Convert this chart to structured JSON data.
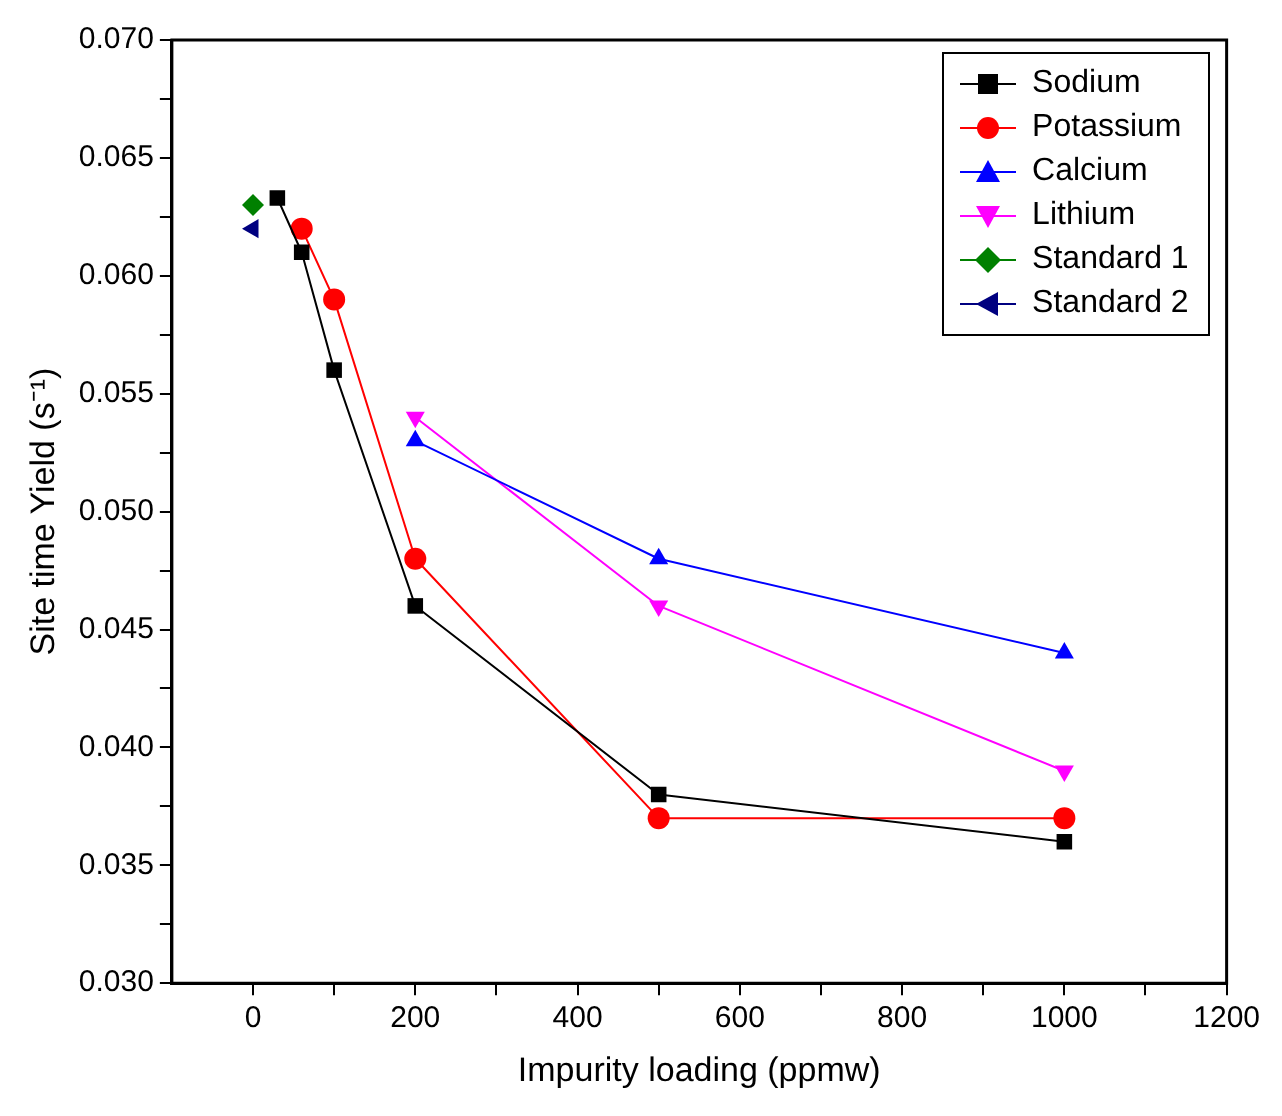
{
  "chart_data": {
    "type": "line",
    "xlabel": "Impurity loading (ppmw)",
    "ylabel": "Site time Yield (s⁻¹)",
    "xlim": [
      -100,
      1200
    ],
    "xticks": [
      0,
      {
        "value": 100,
        "label": null
      },
      200,
      {
        "value": 300,
        "label": null
      },
      400,
      {
        "value": 500,
        "label": null
      },
      600,
      {
        "value": 700,
        "label": null
      },
      800,
      {
        "value": 900,
        "label": null
      },
      1000,
      {
        "value": 1100,
        "label": null
      },
      1200
    ],
    "ylim": [
      0.03,
      0.07
    ],
    "yticks": [
      {
        "value": 0.03,
        "label": "0.030"
      },
      {
        "value": 0.0325,
        "label": null
      },
      {
        "value": 0.035,
        "label": "0.035"
      },
      {
        "value": 0.0375,
        "label": null
      },
      {
        "value": 0.04,
        "label": "0.040"
      },
      {
        "value": 0.0425,
        "label": null
      },
      {
        "value": 0.045,
        "label": "0.045"
      },
      {
        "value": 0.0475,
        "label": null
      },
      {
        "value": 0.05,
        "label": "0.050"
      },
      {
        "value": 0.0525,
        "label": null
      },
      {
        "value": 0.055,
        "label": "0.055"
      },
      {
        "value": 0.0575,
        "label": null
      },
      {
        "value": 0.06,
        "label": "0.060"
      },
      {
        "value": 0.0625,
        "label": null
      },
      {
        "value": 0.065,
        "label": "0.065"
      },
      {
        "value": 0.0675,
        "label": null
      },
      {
        "value": 0.07,
        "label": "0.070"
      }
    ],
    "grid": false,
    "legend": "top right",
    "line_style": "solid",
    "series": [
      {
        "name": "Sodium",
        "color": "#000000",
        "marker": "square",
        "x": [
          30,
          60,
          100,
          200,
          500,
          1000
        ],
        "values": [
          0.0633,
          0.061,
          0.056,
          0.046,
          0.038,
          0.036
        ]
      },
      {
        "name": "Potassium",
        "color": "#ff0000",
        "marker": "circle",
        "x": [
          60,
          100,
          200,
          500,
          1000
        ],
        "values": [
          0.062,
          0.059,
          0.048,
          0.037,
          0.037
        ]
      },
      {
        "name": "Calcium",
        "color": "#0000ff",
        "marker": "triangle",
        "x": [
          200,
          500,
          1000
        ],
        "values": [
          0.053,
          0.048,
          0.044
        ]
      },
      {
        "name": "Lithium",
        "color": "#ff00ff",
        "marker": "triangle-down",
        "x": [
          200,
          500,
          1000
        ],
        "values": [
          0.054,
          0.046,
          0.039
        ]
      },
      {
        "name": "Standard 1",
        "color": "#008000",
        "marker": "diamond",
        "x": [
          0
        ],
        "values": [
          0.063
        ]
      },
      {
        "name": "Standard 2",
        "color": "#000080",
        "marker": "triangle-left",
        "x": [
          0
        ],
        "values": [
          0.062
        ]
      }
    ]
  }
}
